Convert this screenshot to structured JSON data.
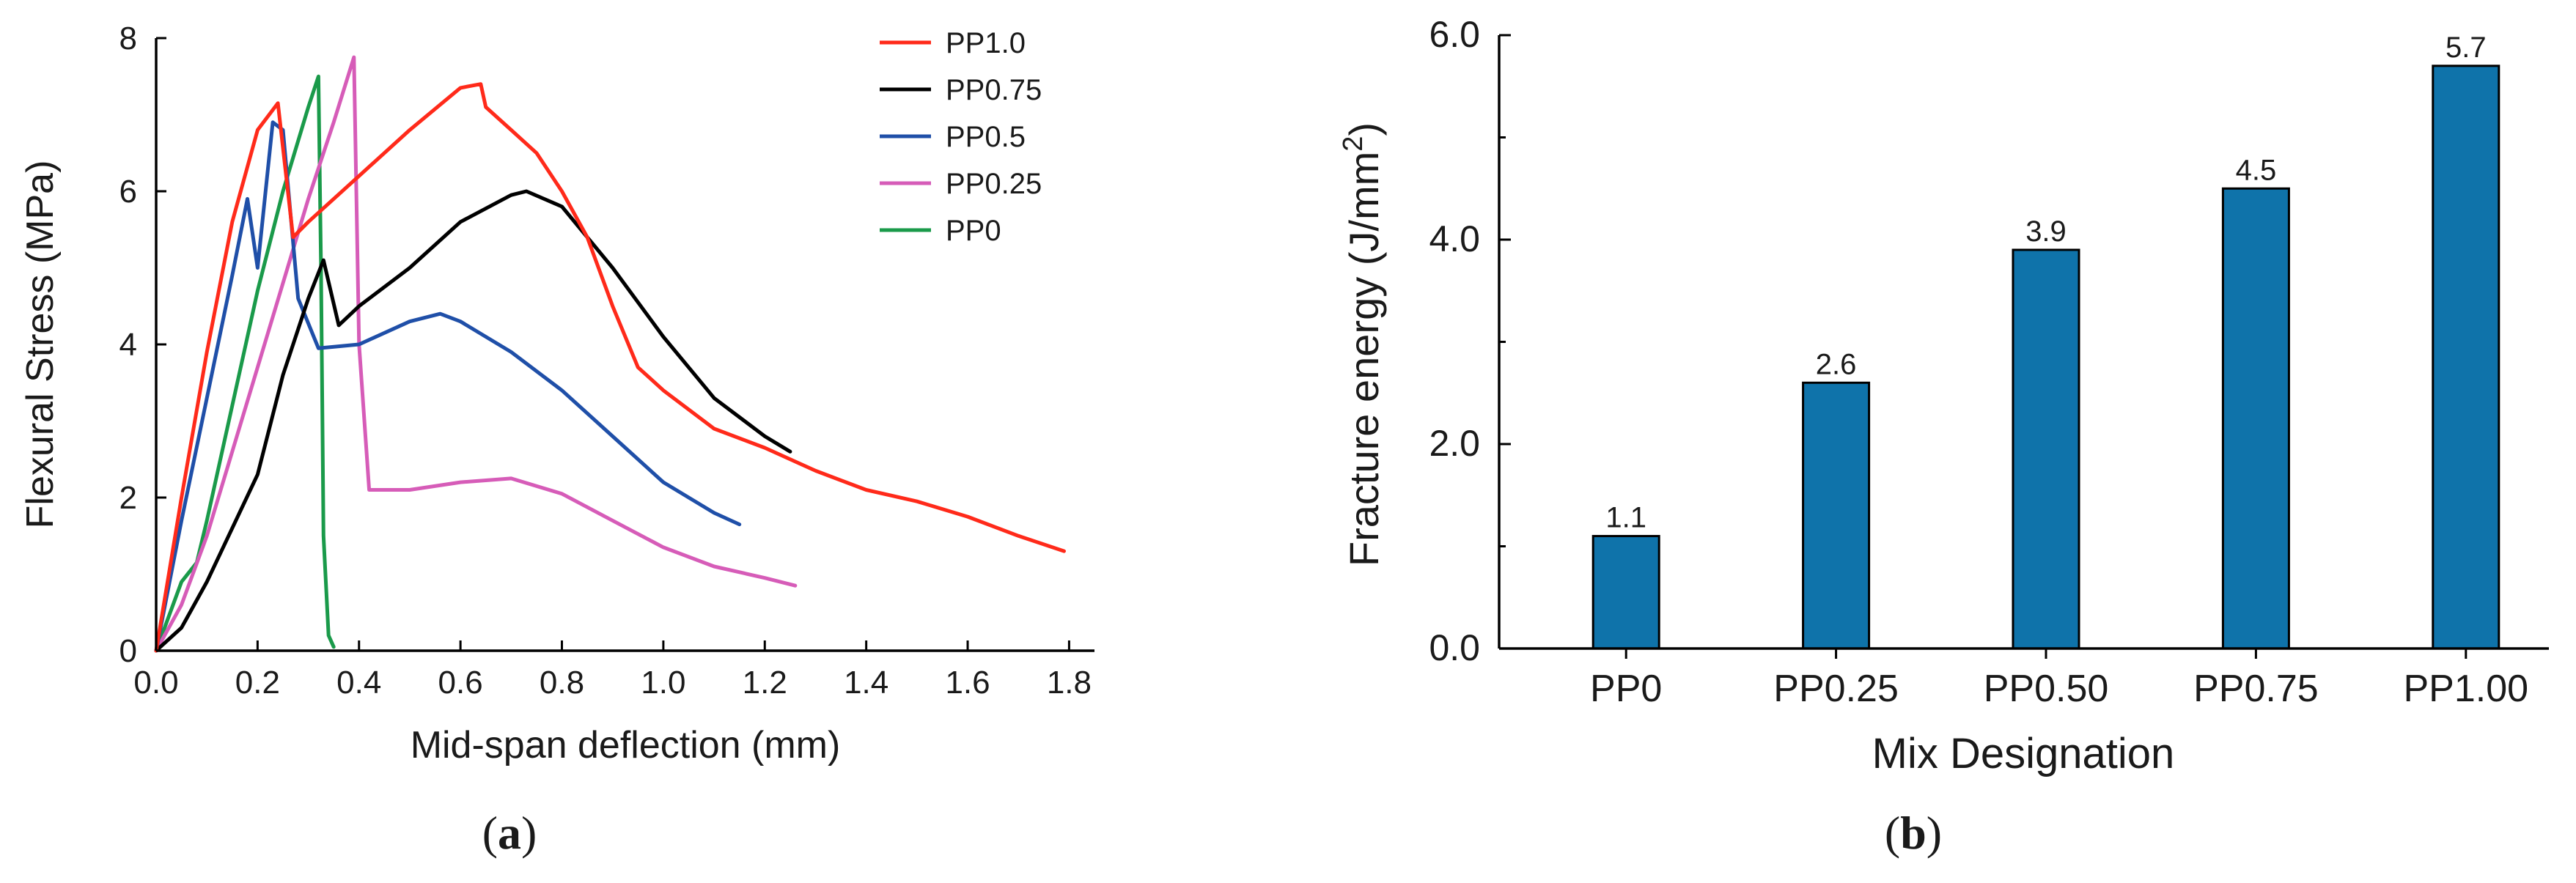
{
  "chart_data": [
    {
      "type": "line",
      "panel_label": "(a)",
      "panel_label_parts": {
        "open": "(",
        "letter": "a",
        "close": ")"
      },
      "xlabel": "Mid-span deflection (mm)",
      "ylabel": "Flexural Stress (MPa)",
      "xlim": [
        0,
        1.85
      ],
      "ylim": [
        0,
        8
      ],
      "xticks": [
        "0.0",
        "0.2",
        "0.4",
        "0.6",
        "0.8",
        "1.0",
        "1.2",
        "1.4",
        "1.6",
        "1.8"
      ],
      "yticks": [
        "0",
        "2",
        "4",
        "6",
        "8"
      ],
      "legend_position": "top-right",
      "series": [
        {
          "name": "PP1.0",
          "color": "#ff2a1a",
          "x": [
            0,
            0.05,
            0.1,
            0.15,
            0.2,
            0.24,
            0.27,
            0.3,
            0.4,
            0.5,
            0.6,
            0.64,
            0.65,
            0.7,
            0.75,
            0.8,
            0.85,
            0.9,
            0.95,
            1.0,
            1.1,
            1.2,
            1.3,
            1.4,
            1.5,
            1.6,
            1.7,
            1.79
          ],
          "y": [
            0,
            2.0,
            3.9,
            5.6,
            6.8,
            7.15,
            5.4,
            5.6,
            6.2,
            6.8,
            7.35,
            7.4,
            7.1,
            6.8,
            6.5,
            6.0,
            5.4,
            4.5,
            3.7,
            3.4,
            2.9,
            2.65,
            2.35,
            2.1,
            1.95,
            1.75,
            1.5,
            1.3
          ]
        },
        {
          "name": "PP0.75",
          "color": "#000000",
          "x": [
            0,
            0.05,
            0.1,
            0.15,
            0.2,
            0.25,
            0.3,
            0.33,
            0.36,
            0.4,
            0.5,
            0.6,
            0.7,
            0.73,
            0.8,
            0.9,
            1.0,
            1.1,
            1.2,
            1.25
          ],
          "y": [
            0,
            0.3,
            0.9,
            1.6,
            2.3,
            3.6,
            4.6,
            5.1,
            4.25,
            4.5,
            5.0,
            5.6,
            5.95,
            6.0,
            5.8,
            5.0,
            4.1,
            3.3,
            2.8,
            2.6
          ]
        },
        {
          "name": "PP0.5",
          "color": "#1f4fa8",
          "x": [
            0,
            0.05,
            0.1,
            0.15,
            0.18,
            0.2,
            0.23,
            0.25,
            0.28,
            0.32,
            0.4,
            0.5,
            0.56,
            0.6,
            0.7,
            0.8,
            0.9,
            1.0,
            1.1,
            1.15
          ],
          "y": [
            0,
            1.7,
            3.3,
            4.9,
            5.9,
            5.0,
            6.9,
            6.8,
            4.6,
            3.95,
            4.0,
            4.3,
            4.4,
            4.3,
            3.9,
            3.4,
            2.8,
            2.2,
            1.8,
            1.65
          ]
        },
        {
          "name": "PP0.25",
          "color": "#d65cb8",
          "x": [
            0,
            0.05,
            0.1,
            0.15,
            0.2,
            0.25,
            0.3,
            0.35,
            0.39,
            0.4,
            0.42,
            0.5,
            0.6,
            0.7,
            0.8,
            0.9,
            1.0,
            1.1,
            1.2,
            1.26
          ],
          "y": [
            0,
            0.6,
            1.5,
            2.6,
            3.7,
            4.8,
            5.9,
            6.9,
            7.75,
            4.0,
            2.1,
            2.1,
            2.2,
            2.25,
            2.05,
            1.7,
            1.35,
            1.1,
            0.95,
            0.85
          ]
        },
        {
          "name": "PP0",
          "color": "#1a9a4a",
          "x": [
            0,
            0.05,
            0.08,
            0.1,
            0.15,
            0.2,
            0.25,
            0.3,
            0.32,
            0.325,
            0.33,
            0.34,
            0.35
          ],
          "y": [
            0,
            0.9,
            1.15,
            1.7,
            3.2,
            4.7,
            6.0,
            7.1,
            7.5,
            5.0,
            1.5,
            0.2,
            0.05
          ]
        }
      ]
    },
    {
      "type": "bar",
      "panel_label": "(b)",
      "panel_label_parts": {
        "open": "(",
        "letter": "b",
        "close": ")"
      },
      "xlabel": "Mix Designation",
      "ylabel": "Fracture energy (J/mm²)",
      "ylabel_parts": {
        "main": "Fracture energy (J/mm",
        "sup": "2",
        "close": ")"
      },
      "ylim": [
        0,
        6.0
      ],
      "yticks": [
        "0.0",
        "2.0",
        "4.0",
        "6.0"
      ],
      "categories": [
        "PP0",
        "PP0.25",
        "PP0.50",
        "PP0.75",
        "PP1.00"
      ],
      "values": [
        1.1,
        2.6,
        3.9,
        4.5,
        5.7
      ],
      "value_labels": [
        "1.1",
        "2.6",
        "3.9",
        "4.5",
        "5.7"
      ],
      "bar_color": "#0f73aa"
    }
  ]
}
